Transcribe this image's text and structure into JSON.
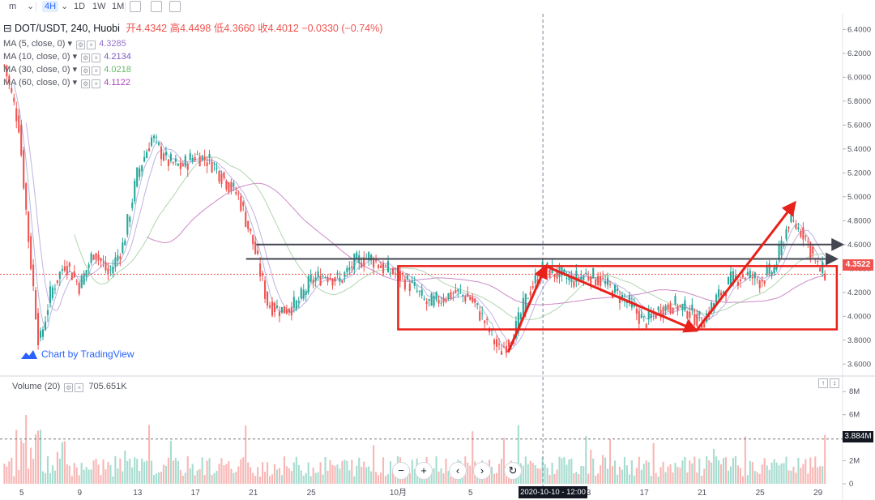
{
  "toolbar": {
    "items": [
      {
        "label": "m",
        "active": false
      },
      {
        "label": "4H",
        "active": true
      },
      {
        "label": "1D",
        "active": false
      },
      {
        "label": "1W",
        "active": false
      },
      {
        "label": "1M",
        "active": false
      }
    ]
  },
  "legend": {
    "symbol": "DOT/USDT, 240, Huobi",
    "open_label": "开",
    "open": "4.4342",
    "high_label": "高",
    "high": "4.4498",
    "low_label": "低",
    "low": "4.3660",
    "close_label": "收",
    "close": "4.4012",
    "change": "−0.0330 (−0.74%)",
    "ma": [
      {
        "label": "MA (5, close, 0)",
        "value": "4.3285",
        "color": "#9575cd"
      },
      {
        "label": "MA (10, close, 0)",
        "value": "4.2134",
        "color": "#7e57c2"
      },
      {
        "label": "MA (30, close, 0)",
        "value": "4.0218",
        "color": "#66bb6a"
      },
      {
        "label": "MA (60, close, 0)",
        "value": "4.1122",
        "color": "#ab47bc"
      }
    ]
  },
  "volume_legend": {
    "label": "Volume (20)",
    "value": "705.651K"
  },
  "branding": "Chart by TradingView",
  "nav_buttons": [
    {
      "icon": "minus-icon",
      "glyph": "−"
    },
    {
      "icon": "plus-icon",
      "glyph": "+"
    },
    {
      "icon": "chevron-left-icon",
      "glyph": "‹"
    },
    {
      "icon": "chevron-right-icon",
      "glyph": "›"
    },
    {
      "icon": "reset-icon",
      "glyph": "↻"
    }
  ],
  "price_tag": "4.3522",
  "volume_tag": "3.884M",
  "crosshair_time": "2020-10-10 - 12:00",
  "colors": {
    "up": "#26a69a",
    "down": "#ef5350",
    "annotation": "#e8211b",
    "hline": "#434651"
  },
  "chart_data": [
    {
      "type": "candlestick",
      "title": "DOT/USDT, 240, Huobi",
      "y_ticks": [
        "6.4000",
        "6.2000",
        "6.0000",
        "5.8000",
        "5.6000",
        "5.4000",
        "5.2000",
        "5.0000",
        "4.8000",
        "4.6000",
        "4.4000",
        "4.2000",
        "4.0000",
        "3.8000",
        "3.6000"
      ],
      "ylim": [
        3.5,
        6.45
      ],
      "x_ticks": [
        "5",
        "9",
        "13",
        "17",
        "21",
        "25",
        "10月",
        "5",
        "9",
        "13",
        "17",
        "21",
        "25",
        "29"
      ],
      "x_days": [
        5,
        9,
        13,
        17,
        21,
        25,
        31,
        36,
        40,
        44,
        48,
        52,
        56,
        60
      ],
      "xlim": [
        3.5,
        61.7
      ],
      "close_path": [
        {
          "d": 3.8,
          "v": 6.1
        },
        {
          "d": 4.8,
          "v": 5.6
        },
        {
          "d": 5.5,
          "v": 4.6
        },
        {
          "d": 6.2,
          "v": 3.75
        },
        {
          "d": 7,
          "v": 4.2
        },
        {
          "d": 8,
          "v": 4.45
        },
        {
          "d": 9,
          "v": 4.25
        },
        {
          "d": 10,
          "v": 4.55
        },
        {
          "d": 11,
          "v": 4.35
        },
        {
          "d": 12,
          "v": 4.6
        },
        {
          "d": 13,
          "v": 5.2
        },
        {
          "d": 14,
          "v": 5.5
        },
        {
          "d": 15,
          "v": 5.3
        },
        {
          "d": 16,
          "v": 5.25
        },
        {
          "d": 17,
          "v": 5.35
        },
        {
          "d": 18,
          "v": 5.3
        },
        {
          "d": 19,
          "v": 5.15
        },
        {
          "d": 20,
          "v": 5.0
        },
        {
          "d": 21,
          "v": 4.6
        },
        {
          "d": 22,
          "v": 4.1
        },
        {
          "d": 23,
          "v": 4.05
        },
        {
          "d": 24,
          "v": 4.1
        },
        {
          "d": 25,
          "v": 4.3
        },
        {
          "d": 26,
          "v": 4.35
        },
        {
          "d": 27,
          "v": 4.3
        },
        {
          "d": 28,
          "v": 4.45
        },
        {
          "d": 29,
          "v": 4.5
        },
        {
          "d": 30,
          "v": 4.4
        },
        {
          "d": 31,
          "v": 4.35
        },
        {
          "d": 32,
          "v": 4.25
        },
        {
          "d": 33,
          "v": 4.1
        },
        {
          "d": 34,
          "v": 4.15
        },
        {
          "d": 35,
          "v": 4.2
        },
        {
          "d": 36,
          "v": 4.15
        },
        {
          "d": 37,
          "v": 3.95
        },
        {
          "d": 38,
          "v": 3.7
        },
        {
          "d": 39,
          "v": 3.85
        },
        {
          "d": 40,
          "v": 4.2
        },
        {
          "d": 41,
          "v": 4.4
        },
        {
          "d": 42,
          "v": 4.35
        },
        {
          "d": 43,
          "v": 4.3
        },
        {
          "d": 44,
          "v": 4.35
        },
        {
          "d": 45,
          "v": 4.3
        },
        {
          "d": 46,
          "v": 4.2
        },
        {
          "d": 47,
          "v": 4.1
        },
        {
          "d": 48,
          "v": 3.95
        },
        {
          "d": 49,
          "v": 4.05
        },
        {
          "d": 50,
          "v": 4.1
        },
        {
          "d": 51,
          "v": 4.05
        },
        {
          "d": 52,
          "v": 3.95
        },
        {
          "d": 53,
          "v": 4.15
        },
        {
          "d": 54,
          "v": 4.3
        },
        {
          "d": 55,
          "v": 4.35
        },
        {
          "d": 56,
          "v": 4.3
        },
        {
          "d": 57,
          "v": 4.4
        },
        {
          "d": 58,
          "v": 4.8
        },
        {
          "d": 59,
          "v": 4.7
        },
        {
          "d": 60,
          "v": 4.4
        },
        {
          "d": 60.6,
          "v": 4.35
        }
      ],
      "horizontal_lines": [
        4.6,
        4.48
      ],
      "last_price_line": 4.3522,
      "rectangle": {
        "x0": 31,
        "x1": 61.3,
        "y0": 3.89,
        "y1": 4.42
      },
      "arrows": [
        {
          "from": [
            38.6,
            3.7
          ],
          "to": [
            41.2,
            4.42
          ]
        },
        {
          "from": [
            41.2,
            4.42
          ],
          "to": [
            51.6,
            3.88
          ]
        },
        {
          "from": [
            51.6,
            3.88
          ],
          "to": [
            58.4,
            4.95
          ]
        }
      ],
      "crosshair_x": 41
    },
    {
      "type": "bar",
      "title": "Volume (20)",
      "y_ticks": [
        "8M",
        "6M",
        "4M",
        "2M",
        "0"
      ],
      "ylim": [
        0,
        9
      ],
      "threshold_line": 3.884
    }
  ]
}
